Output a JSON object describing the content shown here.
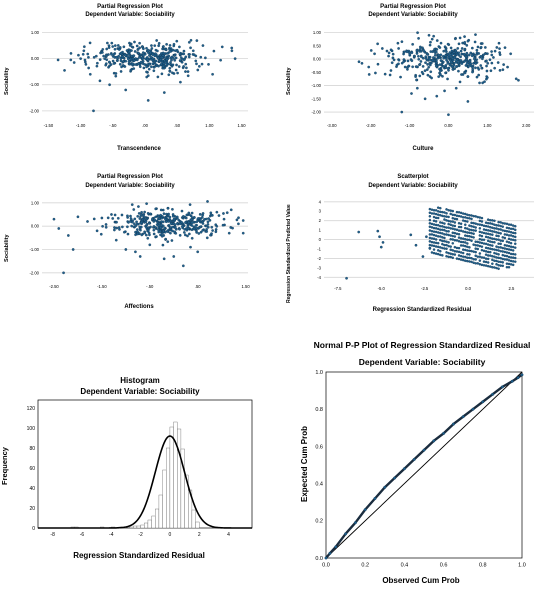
{
  "colors": {
    "point": "#1f5f8b",
    "point_edge": "#0d2f4a",
    "grid": "#d6d6d6",
    "line": "#000000",
    "bar_edge": "#555555"
  },
  "chart_data": [
    {
      "type": "scatter",
      "title": "Partial Regression Plot",
      "subtitle": "Dependent Variable: Sociability",
      "xlabel": "Transcendence",
      "ylabel": "Sociability",
      "xlim": [
        -1.6,
        1.6
      ],
      "ylim": [
        -2.35,
        1.25
      ],
      "xticks": [
        "-1.50",
        "-1.00",
        "-.50",
        ".00",
        ".50",
        "1.00",
        "1.50"
      ],
      "xtick_values": [
        -1.5,
        -1.0,
        -0.5,
        0,
        0.5,
        1.0,
        1.5
      ],
      "yticks": [
        "1.00",
        "0.00",
        "-1.00",
        "-2.00"
      ],
      "ytick_values": [
        1,
        0,
        -1,
        -2
      ],
      "ygrid": [
        1,
        0,
        -1,
        -2
      ],
      "points": [
        [
          -1.35,
          -0.05
        ],
        [
          -1.25,
          -0.45
        ],
        [
          -1.15,
          0.2
        ],
        [
          -1.1,
          -0.15
        ],
        [
          -0.95,
          0.3
        ],
        [
          -0.85,
          -0.6
        ],
        [
          -0.7,
          -0.85
        ],
        [
          -0.6,
          0.1
        ],
        [
          -0.55,
          -1.0
        ],
        [
          -0.8,
          -2.0
        ],
        [
          -0.3,
          -1.2
        ],
        [
          -0.1,
          -0.2
        ],
        [
          0.05,
          -1.6
        ],
        [
          0.1,
          0.5
        ],
        [
          0.2,
          -0.7
        ],
        [
          0.3,
          -1.3
        ],
        [
          0.35,
          0.2
        ],
        [
          0.6,
          -0.3
        ],
        [
          0.75,
          0.3
        ],
        [
          0.9,
          0.5
        ],
        [
          1.05,
          -0.6
        ],
        [
          1.2,
          0.45
        ],
        [
          1.35,
          0.3
        ],
        [
          1.4,
          0.0
        ],
        [
          -0.4,
          0.35
        ],
        [
          -0.2,
          0.45
        ],
        [
          0.45,
          0.55
        ],
        [
          0.55,
          -0.9
        ],
        [
          -1.0,
          0.0
        ],
        [
          0.8,
          -0.2
        ]
      ],
      "cloud": {
        "cx": 0.0,
        "cy": 0.05,
        "sx": 0.42,
        "sy": 0.28,
        "n": 400
      }
    },
    {
      "type": "scatter",
      "title": "Partial Regression Plot",
      "subtitle": "Dependent Variable: Sociability",
      "xlabel": "Culture",
      "ylabel": "Sociability",
      "xlim": [
        -3.2,
        2.2
      ],
      "ylim": [
        -2.3,
        1.25
      ],
      "xticks": [
        "-3.00",
        "-2.00",
        "-1.00",
        "0.00",
        "1.00",
        "2.00"
      ],
      "xtick_values": [
        -3,
        -2,
        -1,
        0,
        1,
        2
      ],
      "yticks": [
        "1.00",
        "0.50",
        "0.00",
        "-0.50",
        "-1.00",
        "-1.50",
        "-2.00"
      ],
      "ytick_values": [
        1,
        0.5,
        0,
        -0.5,
        -1,
        -1.5,
        -2
      ],
      "ygrid": [
        1,
        0,
        -1,
        -2
      ],
      "points": [
        [
          -2.3,
          -0.1
        ],
        [
          -2.05,
          -0.3
        ],
        [
          -1.9,
          0.2
        ],
        [
          -1.7,
          0.4
        ],
        [
          -1.5,
          -0.6
        ],
        [
          -0.95,
          -1.3
        ],
        [
          -0.6,
          -1.5
        ],
        [
          -1.2,
          -2.0
        ],
        [
          -0.3,
          -1.4
        ],
        [
          0.2,
          -1.1
        ],
        [
          0.5,
          -1.6
        ],
        [
          0.8,
          -0.9
        ],
        [
          1.2,
          0.3
        ],
        [
          1.4,
          -0.4
        ],
        [
          1.6,
          0.2
        ],
        [
          1.8,
          -0.8
        ],
        [
          -0.1,
          -1.2
        ],
        [
          -0.8,
          -1.1
        ],
        [
          1.0,
          -0.7
        ],
        [
          -1.3,
          0.6
        ],
        [
          0.3,
          0.8
        ],
        [
          1.3,
          0.6
        ],
        [
          -0.5,
          0.9
        ],
        [
          0.0,
          -2.1
        ]
      ],
      "cloud": {
        "cx": 0.0,
        "cy": 0.0,
        "sx": 0.7,
        "sy": 0.34,
        "n": 400
      }
    },
    {
      "type": "scatter",
      "title": "Partial Regression Plot",
      "subtitle": "Dependent Variable: Sociability",
      "xlabel": "Affections",
      "ylabel": "Sociability",
      "xlim": [
        -2.75,
        1.55
      ],
      "ylim": [
        -2.35,
        1.25
      ],
      "xticks": [
        "-2.50",
        "-1.50",
        "-.50",
        ".50",
        "1.50"
      ],
      "xtick_values": [
        -2.5,
        -1.5,
        -0.5,
        0.5,
        1.5
      ],
      "yticks": [
        "1.00",
        "0.00",
        "-1.00",
        "-2.00"
      ],
      "ytick_values": [
        1,
        0,
        -1,
        -2
      ],
      "ygrid": [
        1,
        0,
        -1,
        -2
      ],
      "points": [
        [
          -2.5,
          0.3
        ],
        [
          -2.4,
          -0.1
        ],
        [
          -2.2,
          -0.4
        ],
        [
          -2.1,
          -1.0
        ],
        [
          -2.3,
          -2.0
        ],
        [
          -2.0,
          0.4
        ],
        [
          -1.8,
          0.2
        ],
        [
          -1.6,
          -0.2
        ],
        [
          -1.5,
          0.35
        ],
        [
          -1.2,
          -0.6
        ],
        [
          -1.0,
          -1.0
        ],
        [
          -0.8,
          -1.1
        ],
        [
          -0.5,
          -0.8
        ],
        [
          -0.2,
          -1.4
        ],
        [
          0.0,
          -1.3
        ],
        [
          0.2,
          -1.7
        ],
        [
          0.35,
          -0.9
        ],
        [
          0.5,
          -1.1
        ],
        [
          0.9,
          0.6
        ],
        [
          1.05,
          0.3
        ],
        [
          1.2,
          0.7
        ],
        [
          1.35,
          0.1
        ],
        [
          -1.3,
          0.5
        ],
        [
          -0.9,
          0.2
        ],
        [
          -0.7,
          -1.3
        ],
        [
          0.7,
          -0.5
        ]
      ],
      "cloud": {
        "cx": -0.1,
        "cy": 0.1,
        "sx": 0.55,
        "sy": 0.3,
        "n": 400
      }
    },
    {
      "type": "scatter",
      "title": "Scatterplot",
      "subtitle": "Dependent Variable: Sociability",
      "xlabel": "Regression Standardized Residual",
      "ylabel": "Regression Standardized Predicted Value",
      "xlim": [
        -8.3,
        3.8
      ],
      "ylim": [
        -4.6,
        4.3
      ],
      "xticks": [
        "-7.5",
        "-5.0",
        "-2.5",
        "0.0",
        "2.5"
      ],
      "xtick_values": [
        -7.5,
        -5.0,
        -2.5,
        0,
        2.5
      ],
      "yticks": [
        "4",
        "3",
        "2",
        "1",
        "0",
        "-1",
        "-2",
        "-3",
        "-4"
      ],
      "ytick_values": [
        4,
        3,
        2,
        1,
        0,
        -1,
        -2,
        -3,
        -4
      ],
      "ygrid": [
        4,
        2,
        0,
        -2,
        -4
      ],
      "points": [
        [
          -7.0,
          -4.1
        ],
        [
          -6.3,
          0.8
        ],
        [
          -5.2,
          0.9
        ],
        [
          -5.1,
          0.3
        ],
        [
          -4.9,
          -0.3
        ],
        [
          -5.0,
          -0.8
        ],
        [
          -3.3,
          0.5
        ],
        [
          -3.0,
          -0.6
        ],
        [
          -2.6,
          -1.8
        ],
        [
          -2.4,
          0.3
        ],
        [
          -2.2,
          -0.9
        ]
      ],
      "band": {
        "n_lines": 14,
        "slope": -1.05,
        "xmin": -2.2,
        "xmax": 2.8
      }
    },
    {
      "type": "bar",
      "title": "Histogram",
      "subtitle": "Dependent Variable: Sociability",
      "xlabel": "Regression Standardized Residual",
      "ylabel": "Frequency",
      "xlim": [
        -9.0,
        5.6
      ],
      "ylim": [
        0,
        128
      ],
      "xticks": [
        "-8",
        "-6",
        "-4",
        "-2",
        "0",
        "2",
        "4"
      ],
      "xtick_values": [
        -8,
        -6,
        -4,
        -2,
        0,
        2,
        4
      ],
      "yticks": [
        "0",
        "20",
        "40",
        "60",
        "80",
        "100",
        "120"
      ],
      "ytick_values": [
        0,
        20,
        40,
        60,
        80,
        100,
        120
      ],
      "bin_width": 0.25,
      "bins": [
        [
          -6.75,
          1
        ],
        [
          -6.5,
          1
        ],
        [
          -4.75,
          1
        ],
        [
          -4.0,
          1
        ],
        [
          -3.5,
          1
        ],
        [
          -3.25,
          1
        ],
        [
          -2.75,
          1
        ],
        [
          -2.5,
          2
        ],
        [
          -2.25,
          2
        ],
        [
          -2.0,
          3
        ],
        [
          -1.75,
          5
        ],
        [
          -1.5,
          8
        ],
        [
          -1.25,
          12
        ],
        [
          -1.0,
          19
        ],
        [
          -0.75,
          33
        ],
        [
          -0.5,
          58
        ],
        [
          -0.25,
          80
        ],
        [
          0.0,
          101
        ],
        [
          0.25,
          106
        ],
        [
          0.5,
          99
        ],
        [
          0.75,
          79
        ],
        [
          1.0,
          53
        ],
        [
          1.25,
          38
        ],
        [
          1.5,
          18
        ],
        [
          1.75,
          6
        ]
      ],
      "normal_curve": {
        "mean": 0.0,
        "sd": 1.0,
        "peak": 92
      }
    },
    {
      "type": "line",
      "title": "Normal P-P Plot of Regression Standardized Residual",
      "subtitle": "Dependent Variable: Sociability",
      "xlabel": "Observed Cum Prob",
      "ylabel": "Expected Cum Prob",
      "xlim": [
        0,
        1
      ],
      "ylim": [
        0,
        1
      ],
      "xticks": [
        "0.0",
        "0.2",
        "0.4",
        "0.6",
        "0.8",
        "1.0"
      ],
      "xtick_values": [
        0,
        0.2,
        0.4,
        0.6,
        0.8,
        1.0
      ],
      "yticks": [
        "0.0",
        "0.2",
        "0.4",
        "0.6",
        "0.8",
        "1.0"
      ],
      "ytick_values": [
        0,
        0.2,
        0.4,
        0.6,
        0.8,
        1.0
      ],
      "curve": [
        [
          0,
          0
        ],
        [
          0.02,
          0.025
        ],
        [
          0.05,
          0.06
        ],
        [
          0.1,
          0.13
        ],
        [
          0.15,
          0.19
        ],
        [
          0.2,
          0.26
        ],
        [
          0.25,
          0.32
        ],
        [
          0.3,
          0.38
        ],
        [
          0.35,
          0.43
        ],
        [
          0.4,
          0.48
        ],
        [
          0.45,
          0.53
        ],
        [
          0.5,
          0.58
        ],
        [
          0.55,
          0.63
        ],
        [
          0.6,
          0.67
        ],
        [
          0.65,
          0.72
        ],
        [
          0.7,
          0.76
        ],
        [
          0.75,
          0.8
        ],
        [
          0.8,
          0.84
        ],
        [
          0.85,
          0.88
        ],
        [
          0.9,
          0.92
        ],
        [
          0.95,
          0.95
        ],
        [
          0.98,
          0.97
        ],
        [
          1.0,
          0.985
        ]
      ],
      "reference_line": [
        [
          0,
          0
        ],
        [
          1,
          1
        ]
      ]
    }
  ]
}
